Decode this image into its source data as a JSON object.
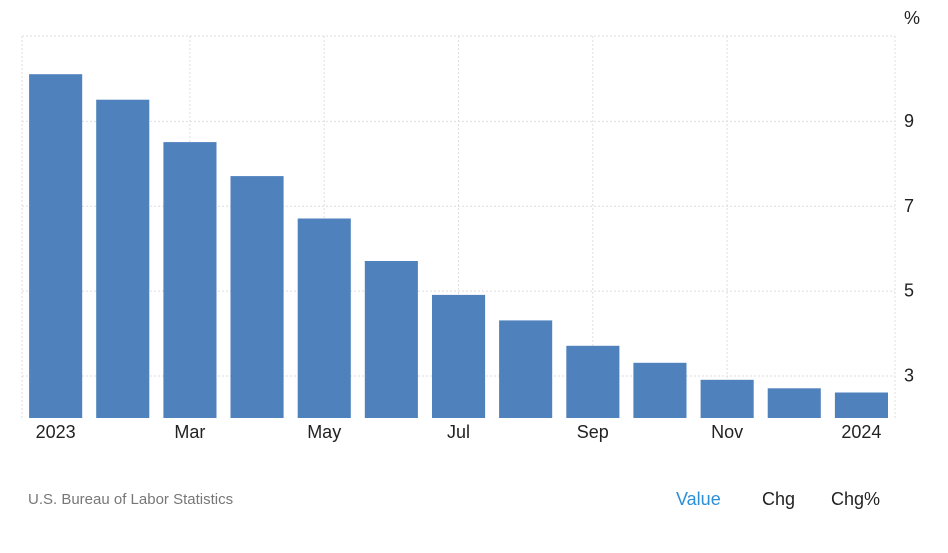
{
  "chart_data": {
    "type": "bar",
    "categories": [
      "2023-01",
      "2023-02",
      "2023-03",
      "2023-04",
      "2023-05",
      "2023-06",
      "2023-07",
      "2023-08",
      "2023-09",
      "2023-10",
      "2023-11",
      "2023-12",
      "2024-01"
    ],
    "values": [
      10.1,
      9.5,
      8.5,
      7.7,
      6.7,
      5.7,
      4.9,
      4.3,
      3.7,
      3.3,
      2.9,
      2.7,
      2.6
    ],
    "x_tick_labels": [
      {
        "index": 0,
        "label": "2023"
      },
      {
        "index": 2,
        "label": "Mar"
      },
      {
        "index": 4,
        "label": "May"
      },
      {
        "index": 6,
        "label": "Jul"
      },
      {
        "index": 8,
        "label": "Sep"
      },
      {
        "index": 10,
        "label": "Nov"
      },
      {
        "index": 12,
        "label": "2024"
      }
    ],
    "y_ticks": [
      3,
      5,
      7,
      9
    ],
    "y_unit": "%",
    "ylim": [
      2.0,
      11.0
    ],
    "y_axis_side": "right",
    "grid": true,
    "bar_color": "#4f81bd"
  },
  "footer": {
    "source": "U.S. Bureau of Labor Statistics",
    "toggles": [
      "Value",
      "Chg",
      "Chg%"
    ],
    "active_toggle": "Value",
    "active_color": "#2a8fd6"
  }
}
